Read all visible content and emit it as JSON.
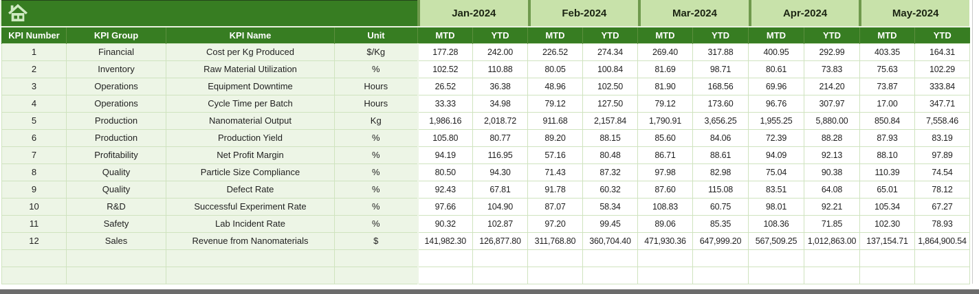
{
  "banner": {
    "home_icon": "home-icon"
  },
  "colors": {
    "header_green": "#377d22",
    "month_light_green": "#c8e2aa",
    "row_tint_green": "#edf5e6",
    "grid_border_green": "#cfe3bf",
    "icon_pale_green": "#cfe9c2",
    "bottom_bar_gray": "#6b6b6b"
  },
  "table": {
    "kpi_headers": [
      "KPI Number",
      "KPI Group",
      "KPI Name",
      "Unit"
    ],
    "months": [
      "Jan-2024",
      "Feb-2024",
      "Mar-2024",
      "Apr-2024",
      "May-2024"
    ],
    "period_headers": [
      "MTD",
      "YTD"
    ],
    "empty_row_count": 2,
    "rows": [
      {
        "number": "1",
        "group": "Financial",
        "name": "Cost per Kg Produced",
        "unit": "$/Kg",
        "values": [
          "177.28",
          "242.00",
          "226.52",
          "274.34",
          "269.40",
          "317.88",
          "400.95",
          "292.99",
          "403.35",
          "164.31"
        ]
      },
      {
        "number": "2",
        "group": "Inventory",
        "name": "Raw Material Utilization",
        "unit": "%",
        "values": [
          "102.52",
          "110.88",
          "80.05",
          "100.84",
          "81.69",
          "98.71",
          "80.61",
          "73.83",
          "75.63",
          "102.29"
        ]
      },
      {
        "number": "3",
        "group": "Operations",
        "name": "Equipment Downtime",
        "unit": "Hours",
        "values": [
          "26.52",
          "36.38",
          "48.96",
          "102.50",
          "81.90",
          "168.56",
          "69.96",
          "214.20",
          "73.87",
          "333.84"
        ]
      },
      {
        "number": "4",
        "group": "Operations",
        "name": "Cycle Time per Batch",
        "unit": "Hours",
        "values": [
          "33.33",
          "34.98",
          "79.12",
          "127.50",
          "79.12",
          "173.60",
          "96.76",
          "307.97",
          "17.00",
          "347.71"
        ]
      },
      {
        "number": "5",
        "group": "Production",
        "name": "Nanomaterial Output",
        "unit": "Kg",
        "values": [
          "1,986.16",
          "2,018.72",
          "911.68",
          "2,157.84",
          "1,790.91",
          "3,656.25",
          "1,955.25",
          "5,880.00",
          "850.84",
          "7,558.46"
        ]
      },
      {
        "number": "6",
        "group": "Production",
        "name": "Production Yield",
        "unit": "%",
        "values": [
          "105.80",
          "80.77",
          "89.20",
          "88.15",
          "85.60",
          "84.06",
          "72.39",
          "88.28",
          "87.93",
          "83.19"
        ]
      },
      {
        "number": "7",
        "group": "Profitability",
        "name": "Net Profit Margin",
        "unit": "%",
        "values": [
          "94.19",
          "116.95",
          "57.16",
          "80.48",
          "86.71",
          "88.61",
          "94.09",
          "92.13",
          "88.10",
          "97.89"
        ]
      },
      {
        "number": "8",
        "group": "Quality",
        "name": "Particle Size Compliance",
        "unit": "%",
        "values": [
          "80.50",
          "94.30",
          "71.43",
          "87.32",
          "97.98",
          "82.98",
          "75.04",
          "90.38",
          "110.39",
          "74.54"
        ]
      },
      {
        "number": "9",
        "group": "Quality",
        "name": "Defect Rate",
        "unit": "%",
        "values": [
          "92.43",
          "67.81",
          "91.78",
          "60.32",
          "87.60",
          "115.08",
          "83.51",
          "64.08",
          "65.01",
          "78.12"
        ]
      },
      {
        "number": "10",
        "group": "R&D",
        "name": "Successful Experiment Rate",
        "unit": "%",
        "values": [
          "97.66",
          "104.90",
          "87.07",
          "58.34",
          "108.83",
          "60.75",
          "98.01",
          "92.21",
          "105.34",
          "67.27"
        ]
      },
      {
        "number": "11",
        "group": "Safety",
        "name": "Lab Incident Rate",
        "unit": "%",
        "values": [
          "90.32",
          "102.87",
          "97.20",
          "99.45",
          "89.06",
          "85.35",
          "108.36",
          "71.85",
          "102.30",
          "78.93"
        ]
      },
      {
        "number": "12",
        "group": "Sales",
        "name": "Revenue from Nanomaterials",
        "unit": "$",
        "values": [
          "141,982.30",
          "126,877.80",
          "311,768.80",
          "360,704.40",
          "471,930.36",
          "647,999.20",
          "567,509.25",
          "1,012,863.00",
          "137,154.71",
          "1,864,900.54"
        ]
      }
    ]
  }
}
